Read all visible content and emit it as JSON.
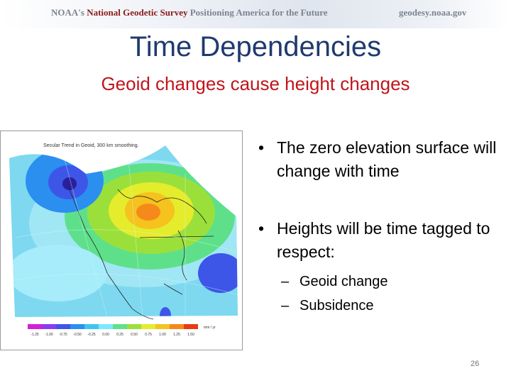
{
  "header": {
    "left_part1": "NOAA's",
    "left_part2": "National Geodetic Survey",
    "left_part3": "Positioning America for the Future",
    "right": "geodesy.noaa.gov"
  },
  "slide": {
    "title": "Time Dependencies",
    "subtitle": "Geoid changes cause height changes",
    "bullets": [
      "The zero elevation surface will change with time",
      "Heights will be time tagged to respect:"
    ],
    "sub_bullets": [
      "Geoid change",
      "Subsidence"
    ],
    "page_number": "26"
  },
  "figure": {
    "title": "Secular Trend in Geoid, 300 km smoothing.",
    "colorbar_ticks": [
      "-1.25",
      "-1.00",
      "-0.75",
      "-0.50",
      "-0.25",
      "0.00",
      "0.25",
      "0.50",
      "0.75",
      "1.00",
      "1.25",
      "1.50"
    ],
    "colorbar_unit": "mm / yr",
    "colorbar_colors": [
      "#d21fd8",
      "#8a3cf0",
      "#3d56e8",
      "#2b8ff0",
      "#3fc6f0",
      "#7de8ff",
      "#5fe08a",
      "#9be03a",
      "#e5ec2c",
      "#f5c21e",
      "#f58a1a",
      "#e83a14"
    ]
  }
}
